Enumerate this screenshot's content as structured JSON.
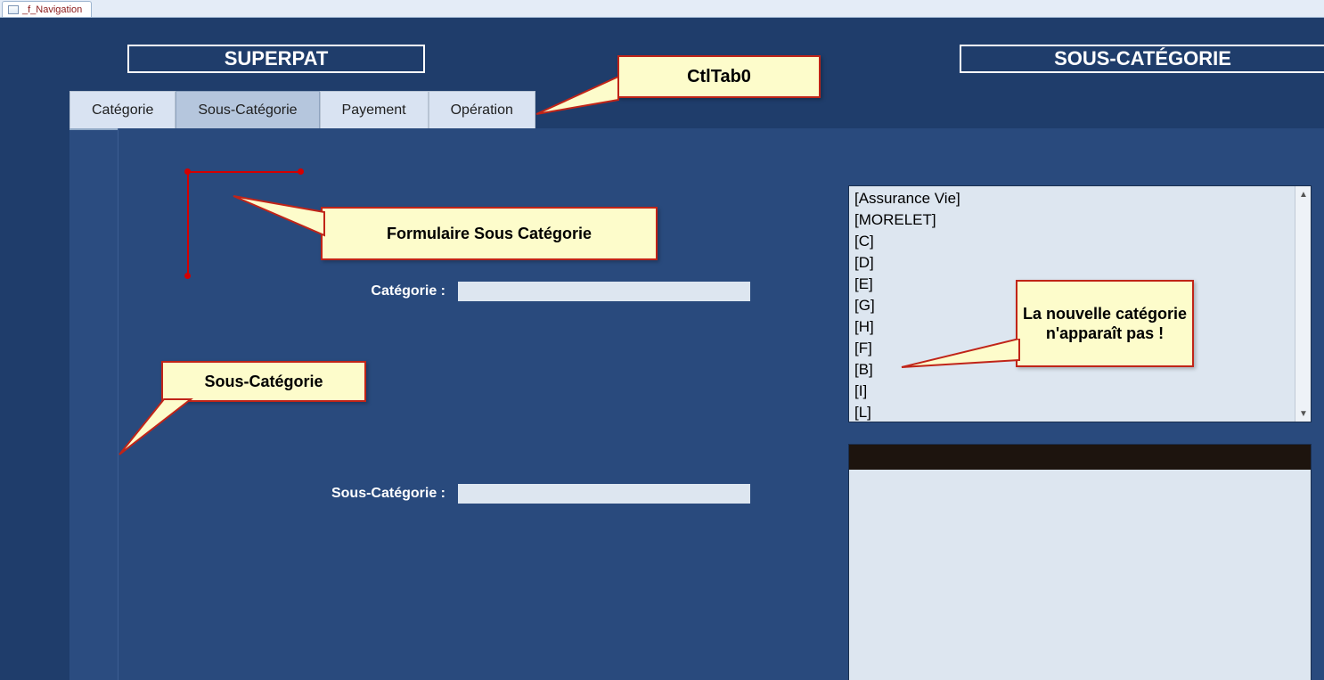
{
  "colors": {
    "workspace_bg": "#1f3d6b",
    "tab_body_bg": "#2b4c80",
    "tab_inactive_bg": "#d9e3f2",
    "tab_active_bg": "#b5c6dd",
    "field_bg": "#dde6f0",
    "callout_bg": "#fdfccb",
    "callout_border": "#c02418",
    "selection_red": "#d40000",
    "title_border": "#ffffff"
  },
  "doc_tab": {
    "label": "_f_Navigation"
  },
  "titles": {
    "left": "SUPERPAT",
    "right": "SOUS-CATÉGORIE"
  },
  "tabs": {
    "items": [
      {
        "label": "Catégorie",
        "active": false
      },
      {
        "label": "Sous-Catégorie",
        "active": true
      },
      {
        "label": "Payement",
        "active": false
      },
      {
        "label": "Opération",
        "active": false
      }
    ]
  },
  "fields": {
    "categorie_label": "Catégorie :",
    "categorie_value": "",
    "sous_categorie_label": "Sous-Catégorie :",
    "sous_categorie_value": ""
  },
  "listbox": {
    "items": [
      "[Assurance Vie]",
      "[MORELET]",
      "[C]",
      "[D]",
      "[E]",
      "[G]",
      "[H]",
      "[F]",
      "[B]",
      "[I]",
      "[L]"
    ]
  },
  "callouts": {
    "tab0": "CtlTab0",
    "form": "Formulaire Sous Catégorie",
    "scat": "Sous-Catégorie",
    "new": "La nouvelle catégorie n'apparaît pas !"
  }
}
